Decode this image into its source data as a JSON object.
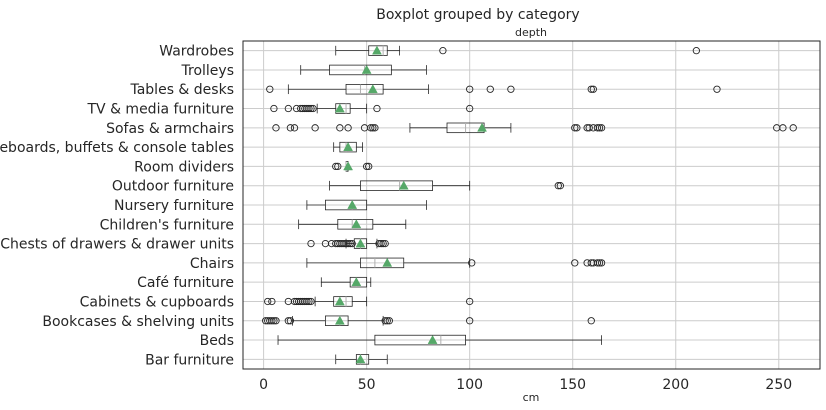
{
  "chart_data": {
    "type": "boxplot",
    "orientation": "horizontal",
    "suptitle": "Boxplot grouped by category",
    "title": "depth",
    "xlabel": "cm",
    "xlim": [
      -10,
      270
    ],
    "xticks": [
      0,
      50,
      100,
      150,
      200,
      250
    ],
    "grid": true,
    "colors": {
      "box": "#262626",
      "median": "#b0b0b0",
      "mean_marker": "#55a868",
      "grid": "#cccccc",
      "spine": "#262626"
    },
    "categories": [
      {
        "name": "Wardrobes",
        "q1": 51,
        "median": 58,
        "q3": 60,
        "whislo": 35,
        "whishi": 66,
        "mean": 55,
        "fliers": [
          87,
          210
        ]
      },
      {
        "name": "Trolleys",
        "q1": 32,
        "median": 49,
        "q3": 62,
        "whislo": 18,
        "whishi": 79,
        "mean": 50,
        "fliers": []
      },
      {
        "name": "Tables & desks",
        "q1": 40,
        "median": 47,
        "q3": 58,
        "whislo": 12,
        "whishi": 80,
        "mean": 53,
        "fliers": [
          3,
          100,
          110,
          120,
          159,
          160,
          220
        ]
      },
      {
        "name": "TV & media furniture",
        "q1": 35,
        "median": 40,
        "q3": 42,
        "whislo": 26,
        "whishi": 50,
        "mean": 37,
        "fliers": [
          5,
          12,
          16,
          18,
          19,
          20,
          21,
          22,
          23,
          24,
          55,
          100
        ]
      },
      {
        "name": "Sofas & armchairs",
        "q1": 89,
        "median": 98,
        "q3": 107,
        "whislo": 71,
        "whishi": 120,
        "mean": 106,
        "fliers": [
          6,
          13,
          15,
          25,
          37,
          41,
          49,
          52,
          53,
          54,
          151,
          152,
          157,
          158,
          160,
          162,
          163,
          164,
          249,
          252,
          257
        ]
      },
      {
        "name": "Sideboards, buffets & console tables",
        "q1": 37,
        "median": 40,
        "q3": 45,
        "whislo": 34,
        "whishi": 48,
        "mean": 41,
        "fliers": []
      },
      {
        "name": "Room dividers",
        "q1": 40,
        "median": 40,
        "q3": 41,
        "whislo": 40,
        "whishi": 41,
        "mean": 41,
        "fliers": [
          35,
          36,
          50,
          51
        ]
      },
      {
        "name": "Outdoor furniture",
        "q1": 47,
        "median": 66,
        "q3": 82,
        "whislo": 32,
        "whishi": 100,
        "mean": 68,
        "fliers": [
          143,
          144
        ]
      },
      {
        "name": "Nursery furniture",
        "q1": 30,
        "median": 43,
        "q3": 50,
        "whislo": 21,
        "whishi": 79,
        "mean": 43,
        "fliers": []
      },
      {
        "name": "Children's furniture",
        "q1": 36,
        "median": 43,
        "q3": 53,
        "whislo": 17,
        "whishi": 69,
        "mean": 45,
        "fliers": []
      },
      {
        "name": "Chests of drawers & drawer units",
        "q1": 44,
        "median": 47,
        "q3": 50,
        "whislo": 40,
        "whishi": 55,
        "mean": 47,
        "fliers": [
          23,
          30,
          33,
          35,
          36,
          37,
          38,
          39,
          40,
          41,
          42,
          43,
          56,
          57,
          58,
          59
        ]
      },
      {
        "name": "Chairs",
        "q1": 47,
        "median": 54,
        "q3": 68,
        "whislo": 21,
        "whishi": 100,
        "mean": 60,
        "fliers": [
          101,
          151,
          157,
          159,
          160,
          162,
          163,
          164
        ]
      },
      {
        "name": "Café furniture",
        "q1": 42,
        "median": 45,
        "q3": 50,
        "whislo": 28,
        "whishi": 52,
        "mean": 45,
        "fliers": []
      },
      {
        "name": "Cabinets & cupboards",
        "q1": 34,
        "median": 40,
        "q3": 43,
        "whislo": 25,
        "whishi": 50,
        "mean": 37,
        "fliers": [
          2,
          4,
          12,
          15,
          16,
          17,
          18,
          19,
          20,
          21,
          22,
          23,
          100
        ]
      },
      {
        "name": "Bookcases & shelving units",
        "q1": 30,
        "median": 37,
        "q3": 41,
        "whislo": 14,
        "whishi": 58,
        "mean": 37,
        "fliers": [
          1,
          2,
          3,
          4,
          5,
          6,
          12,
          13,
          59,
          60,
          61,
          100,
          159
        ]
      },
      {
        "name": "Beds",
        "q1": 54,
        "median": 86,
        "q3": 98,
        "whislo": 7,
        "whishi": 164,
        "mean": 82,
        "fliers": []
      },
      {
        "name": "Bar furniture",
        "q1": 45,
        "median": 47,
        "q3": 51,
        "whislo": 35,
        "whishi": 60,
        "mean": 47,
        "fliers": []
      }
    ]
  }
}
